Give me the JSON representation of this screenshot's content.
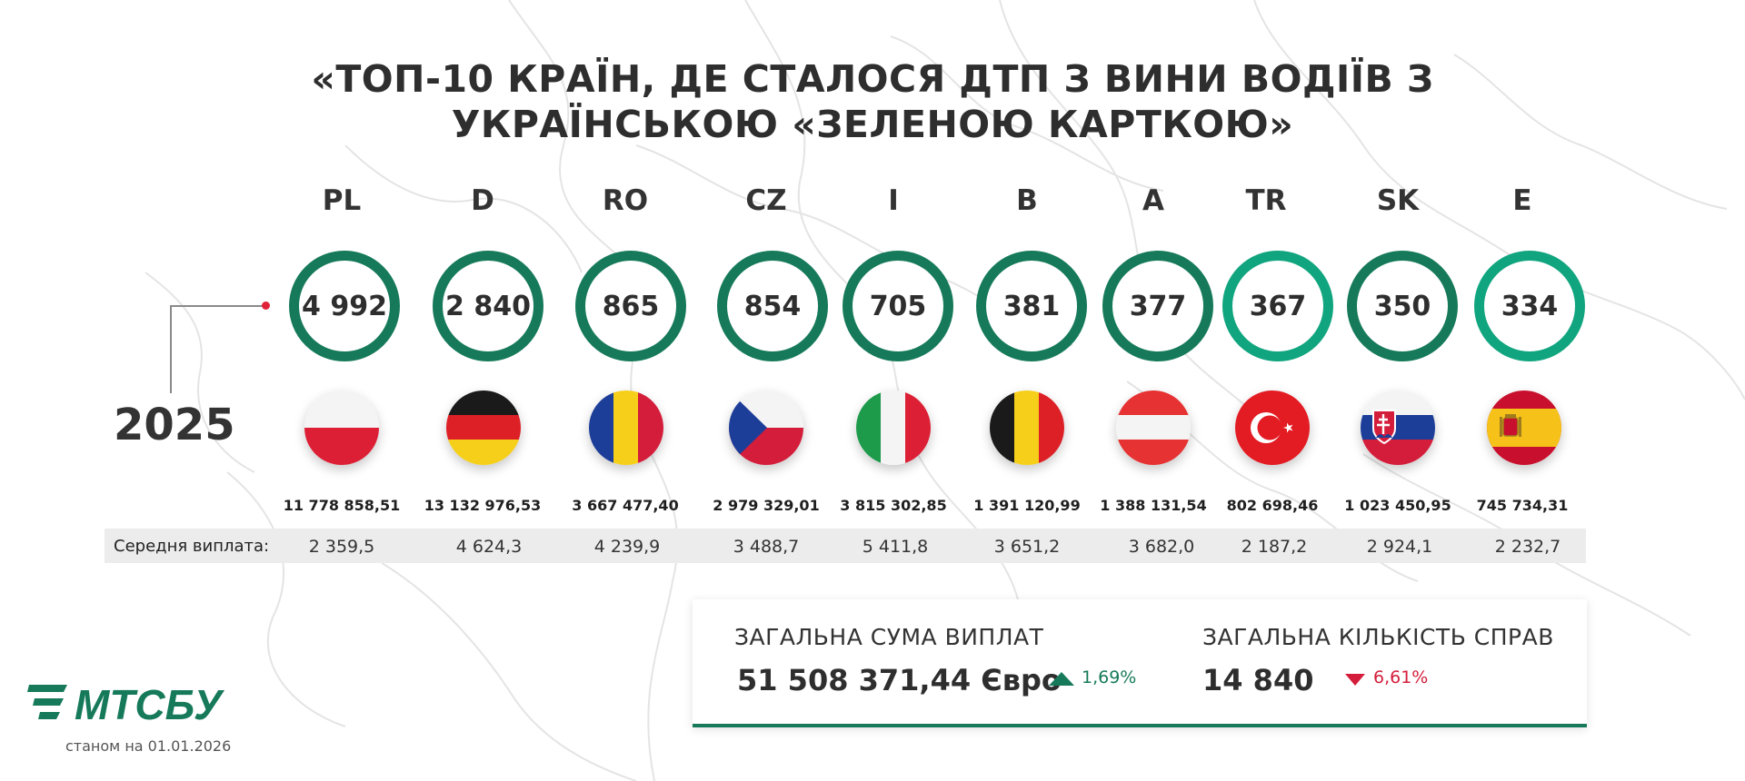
{
  "title": {
    "line1": "«ТОП-10 КРАЇН, ДЕ СТАЛОСЯ ДТП З ВИНИ ВОДІЇВ З",
    "line2": "УКРАЇНСЬКОЮ «ЗЕЛЕНОЮ КАРТКОЮ»"
  },
  "year": "2025",
  "avg_label": "Середня виплата:",
  "countries": [
    {
      "code": "PL",
      "cases": "4 992",
      "sum": "11 778 858,51",
      "avg": "2 359,5",
      "flag": "poland-flag-icon"
    },
    {
      "code": "D",
      "cases": "2 840",
      "sum": "13 132 976,53",
      "avg": "4 624,3",
      "flag": "germany-flag-icon"
    },
    {
      "code": "RO",
      "cases": "865",
      "sum": "3 667 477,40",
      "avg": "4 239,9",
      "flag": "romania-flag-icon"
    },
    {
      "code": "CZ",
      "cases": "854",
      "sum": "2 979 329,01",
      "avg": "3 488,7",
      "flag": "czechia-flag-icon"
    },
    {
      "code": "I",
      "cases": "705",
      "sum": "3 815 302,85",
      "avg": "5 411,8",
      "flag": "italy-flag-icon"
    },
    {
      "code": "B",
      "cases": "381",
      "sum": "1 391 120,99",
      "avg": "3 651,2",
      "flag": "belgium-flag-icon"
    },
    {
      "code": "A",
      "cases": "377",
      "sum": "1 388 131,54",
      "avg": "3 682,0",
      "flag": "austria-flag-icon"
    },
    {
      "code": "TR",
      "cases": "367",
      "sum": "802 698,46",
      "avg": "2 187,2",
      "flag": "turkey-flag-icon"
    },
    {
      "code": "SK",
      "cases": "350",
      "sum": "1 023 450,95",
      "avg": "2 924,1",
      "flag": "slovakia-flag-icon"
    },
    {
      "code": "E",
      "cases": "334",
      "sum": "745 734,31",
      "avg": "2 232,7",
      "flag": "spain-flag-icon"
    }
  ],
  "ring_colors": [
    "#167a5a",
    "#167a5a",
    "#167a5a",
    "#167a5a",
    "#167a5a",
    "#167a5a",
    "#167a5a",
    "#10a57f",
    "#167a5a",
    "#10a57f"
  ],
  "totals": {
    "sum_label": "ЗАГАЛЬНА СУМА ВИПЛАТ",
    "sum_value": "51 508 371,44 Євро",
    "sum_change": "1,69%",
    "sum_trend": "up",
    "count_label": "ЗАГАЛЬНА КІЛЬКІСТЬ СПРАВ",
    "count_value": "14 840",
    "count_change": "6,61%",
    "count_trend": "down"
  },
  "logo_text": "МТСБУ",
  "as_of": "станом на 01.01.2026",
  "colors": {
    "green": "#167a5a",
    "green_light": "#10a57f",
    "red": "#d41d3b",
    "band": "#ececec"
  }
}
